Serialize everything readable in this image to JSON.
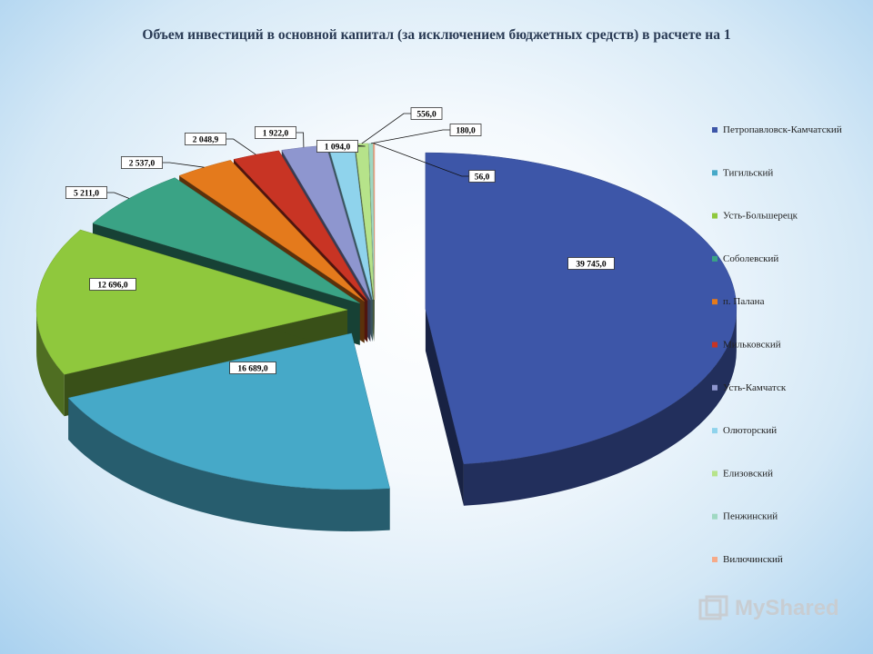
{
  "chart_data": {
    "type": "pie",
    "title": "Объем инвестиций в основной капитал (за исключением бюджетных средств) в расчете на 1",
    "series": [
      {
        "name": "Петропавловск-Камчатский",
        "value": 39745.0,
        "label": "39 745,0",
        "color": "#3d56a8"
      },
      {
        "name": "Тигильский",
        "value": 16689.0,
        "label": "16 689,0",
        "color": "#46a9c8"
      },
      {
        "name": "Усть-Большерецк",
        "value": 12696.0,
        "label": "12 696,0",
        "color": "#8fc83d"
      },
      {
        "name": "Соболевский",
        "value": 5211.0,
        "label": "5 211,0",
        "color": "#3aa385"
      },
      {
        "name": "п. Палана",
        "value": 2537.0,
        "label": "2 537,0",
        "color": "#e47a1c"
      },
      {
        "name": "Мильковский",
        "value": 2048.9,
        "label": "2 048,9",
        "color": "#c83424"
      },
      {
        "name": "Усть-Камчатск",
        "value": 1922.0,
        "label": "1 922,0",
        "color": "#8e96cf"
      },
      {
        "name": "Олюторский",
        "value": 1094.0,
        "label": "1 094,0",
        "color": "#8fd3ec"
      },
      {
        "name": "Елизовский",
        "value": 556.0,
        "label": "556,0",
        "color": "#b6e38a"
      },
      {
        "name": "Пенжинский",
        "value": 180.0,
        "label": "180,0",
        "color": "#9fd8c2"
      },
      {
        "name": "Вилючинский",
        "value": 56.0,
        "label": "56,0",
        "color": "#f6aa88"
      }
    ],
    "legend_position": "right",
    "style": "3d-exploded"
  },
  "watermark": "MyShared"
}
